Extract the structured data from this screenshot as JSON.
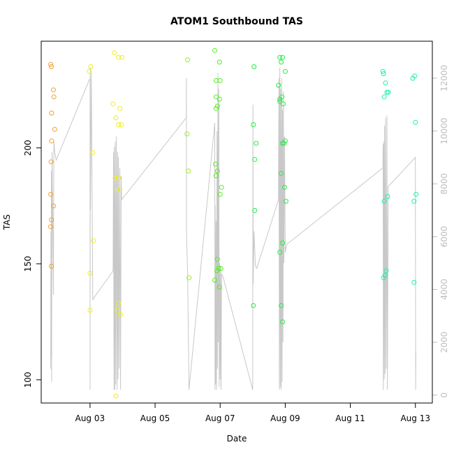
{
  "chart_data": {
    "type": "scatter",
    "title": "ATOM1 Southbound TAS",
    "xlabel": "Date",
    "ylabel": "TAS",
    "xlim": [
      "2023-08-01T12:00",
      "2023-08-13T12:30"
    ],
    "ylim": [
      90,
      246
    ],
    "y2lim": [
      -300,
      13400
    ],
    "x_ticks": [
      "Aug 03",
      "Aug 05",
      "Aug 07",
      "Aug 09",
      "Aug 11",
      "Aug 13"
    ],
    "y_ticks": [
      100,
      150,
      200
    ],
    "y2_ticks": [
      0,
      2000,
      4000,
      6000,
      8000,
      10000,
      12000
    ],
    "grid": false,
    "legend": "none",
    "series": [
      {
        "color": "#f0a030",
        "points": [
          [
            "2023-08-01T19:00",
            236
          ],
          [
            "2023-08-01T19:30",
            235
          ],
          [
            "2023-08-01T21:00",
            225
          ],
          [
            "2023-08-01T21:20",
            222
          ],
          [
            "2023-08-01T19:40",
            215
          ],
          [
            "2023-08-01T22:00",
            208
          ],
          [
            "2023-08-01T19:40",
            203
          ],
          [
            "2023-08-01T19:20",
            194
          ],
          [
            "2023-08-01T19:00",
            180
          ],
          [
            "2023-08-01T21:00",
            175
          ],
          [
            "2023-08-01T19:30",
            169
          ],
          [
            "2023-08-01T19:00",
            166
          ],
          [
            "2023-08-01T19:30",
            149
          ]
        ]
      },
      {
        "color": "#eeee22",
        "points": [
          [
            "2023-08-02T23:30",
            233
          ],
          [
            "2023-08-03T00:30",
            235
          ],
          [
            "2023-08-03T02:00",
            198
          ],
          [
            "2023-08-03T02:30",
            160
          ],
          [
            "2023-08-03T00:00",
            146
          ],
          [
            "2023-08-03T00:00",
            130
          ],
          [
            "2023-08-03T18:00",
            241
          ],
          [
            "2023-08-03T21:00",
            239
          ],
          [
            "2023-08-03T23:30",
            239
          ],
          [
            "2023-08-03T17:00",
            219
          ],
          [
            "2023-08-03T22:00",
            217
          ],
          [
            "2023-08-03T19:00",
            213
          ],
          [
            "2023-08-03T21:00",
            210
          ],
          [
            "2023-08-03T23:00",
            210
          ],
          [
            "2023-08-03T18:30",
            187
          ],
          [
            "2023-08-03T21:00",
            187
          ],
          [
            "2023-08-03T20:00",
            182
          ],
          [
            "2023-08-03T22:00",
            182
          ],
          [
            "2023-08-03T21:00",
            133
          ],
          [
            "2023-08-03T20:00",
            130
          ],
          [
            "2023-08-03T22:30",
            128
          ],
          [
            "2023-08-03T19:00",
            93
          ]
        ]
      },
      {
        "color": "#99ee22",
        "points": [
          [
            "2023-08-06T00:00",
            238
          ],
          [
            "2023-08-05T23:30",
            206
          ],
          [
            "2023-08-06T00:30",
            190
          ],
          [
            "2023-08-06T01:00",
            144
          ]
        ]
      },
      {
        "color": "#55ee22",
        "points": [
          [
            "2023-08-06T20:00",
            242
          ],
          [
            "2023-08-06T23:30",
            237
          ],
          [
            "2023-08-06T21:00",
            229
          ],
          [
            "2023-08-07T00:00",
            229
          ],
          [
            "2023-08-06T21:00",
            222
          ],
          [
            "2023-08-06T23:30",
            221
          ],
          [
            "2023-08-06T21:00",
            217
          ],
          [
            "2023-08-06T22:00",
            218
          ],
          [
            "2023-08-06T20:30",
            193
          ],
          [
            "2023-08-06T22:00",
            190
          ],
          [
            "2023-08-06T21:00",
            188
          ],
          [
            "2023-08-07T01:00",
            183
          ],
          [
            "2023-08-07T00:00",
            180
          ],
          [
            "2023-08-06T22:00",
            152
          ],
          [
            "2023-08-06T23:00",
            148
          ],
          [
            "2023-08-07T00:30",
            148
          ],
          [
            "2023-08-06T21:30",
            147
          ],
          [
            "2023-08-06T20:00",
            143
          ],
          [
            "2023-08-06T23:30",
            140
          ]
        ]
      },
      {
        "color": "#22ee44",
        "points": [
          [
            "2023-08-08T01:00",
            235
          ],
          [
            "2023-08-08T00:30",
            210
          ],
          [
            "2023-08-08T02:30",
            202
          ],
          [
            "2023-08-08T01:30",
            195
          ],
          [
            "2023-08-08T01:30",
            173
          ],
          [
            "2023-08-08T00:30",
            132
          ],
          [
            "2023-08-08T20:00",
            239
          ],
          [
            "2023-08-08T21:00",
            237
          ],
          [
            "2023-08-08T22:00",
            239
          ],
          [
            "2023-08-09T00:00",
            233
          ],
          [
            "2023-08-08T19:00",
            227
          ],
          [
            "2023-08-08T20:00",
            221
          ],
          [
            "2023-08-08T21:30",
            222
          ],
          [
            "2023-08-08T20:00",
            220
          ],
          [
            "2023-08-08T22:30",
            219
          ],
          [
            "2023-08-08T22:00",
            202
          ],
          [
            "2023-08-09T00:00",
            203
          ],
          [
            "2023-08-08T23:00",
            202
          ],
          [
            "2023-08-08T21:00",
            189
          ],
          [
            "2023-08-08T23:30",
            183
          ],
          [
            "2023-08-09T00:30",
            177
          ],
          [
            "2023-08-08T22:00",
            159
          ],
          [
            "2023-08-08T20:00",
            155
          ],
          [
            "2023-08-08T21:00",
            132
          ],
          [
            "2023-08-08T22:00",
            125
          ]
        ]
      },
      {
        "color": "#22eeaa",
        "points": [
          [
            "2023-08-12T00:00",
            233
          ],
          [
            "2023-08-12T00:30",
            232
          ],
          [
            "2023-08-12T02:00",
            228
          ],
          [
            "2023-08-12T03:00",
            224
          ],
          [
            "2023-08-12T04:00",
            224
          ],
          [
            "2023-08-12T01:00",
            222
          ],
          [
            "2023-08-12T01:00",
            177
          ],
          [
            "2023-08-12T03:30",
            179
          ],
          [
            "2023-08-12T02:30",
            147
          ],
          [
            "2023-08-12T01:30",
            145
          ],
          [
            "2023-08-12T00:30",
            144
          ],
          [
            "2023-08-12T22:00",
            230
          ],
          [
            "2023-08-12T23:30",
            231
          ],
          [
            "2023-08-13T00:00",
            211
          ],
          [
            "2023-08-13T00:30",
            180
          ],
          [
            "2023-08-12T23:00",
            177
          ],
          [
            "2023-08-12T23:00",
            142
          ]
        ]
      }
    ],
    "line_series": {
      "axis": "right",
      "color": "#c8c8c8",
      "points": [
        [
          "2023-08-01T19:00",
          1000
        ],
        [
          "2023-08-01T19:10",
          6200
        ],
        [
          "2023-08-01T19:20",
          1400
        ],
        [
          "2023-08-01T19:30",
          8500
        ],
        [
          "2023-08-01T19:40",
          500
        ],
        [
          "2023-08-01T20:00",
          9200
        ],
        [
          "2023-08-01T21:00",
          3800
        ],
        [
          "2023-08-01T21:20",
          9600
        ],
        [
          "2023-08-01T22:00",
          9200
        ],
        [
          "2023-08-01T23:00",
          8900
        ],
        [
          "2023-08-03T00:00",
          12000
        ],
        [
          "2023-08-03T00:05",
          200
        ],
        [
          "2023-08-03T00:10",
          12400
        ],
        [
          "2023-08-03T00:20",
          7000
        ],
        [
          "2023-08-03T01:00",
          12200
        ],
        [
          "2023-08-03T02:00",
          3600
        ],
        [
          "2023-08-03T03:00",
          3700
        ],
        [
          "2023-08-03T17:00",
          4700
        ],
        [
          "2023-08-03T17:20",
          9200
        ],
        [
          "2023-08-03T17:40",
          200
        ],
        [
          "2023-08-03T18:00",
          9400
        ],
        [
          "2023-08-03T18:20",
          200
        ],
        [
          "2023-08-03T18:40",
          9600
        ],
        [
          "2023-08-03T19:00",
          400
        ],
        [
          "2023-08-03T19:30",
          9800
        ],
        [
          "2023-08-03T20:00",
          200
        ],
        [
          "2023-08-03T20:20",
          9200
        ],
        [
          "2023-08-03T20:40",
          600
        ],
        [
          "2023-08-03T21:00",
          9000
        ],
        [
          "2023-08-03T21:30",
          1000
        ],
        [
          "2023-08-03T22:00",
          8600
        ],
        [
          "2023-08-03T22:30",
          200
        ],
        [
          "2023-08-03T23:00",
          8300
        ],
        [
          "2023-08-03T23:20",
          7400
        ],
        [
          "2023-08-05T23:00",
          10500
        ],
        [
          "2023-08-05T23:05",
          12000
        ],
        [
          "2023-08-05T23:10",
          6200
        ],
        [
          "2023-08-06T00:00",
          4600
        ],
        [
          "2023-08-06T01:00",
          200
        ],
        [
          "2023-08-06T20:00",
          10300
        ],
        [
          "2023-08-06T20:10",
          200
        ],
        [
          "2023-08-06T20:20",
          7200
        ],
        [
          "2023-08-06T20:40",
          400
        ],
        [
          "2023-08-06T21:00",
          6600
        ],
        [
          "2023-08-06T21:20",
          200
        ],
        [
          "2023-08-06T21:40",
          10000
        ],
        [
          "2023-08-06T22:00",
          1000
        ],
        [
          "2023-08-06T22:20",
          12200
        ],
        [
          "2023-08-06T22:40",
          2000
        ],
        [
          "2023-08-06T23:00",
          11600
        ],
        [
          "2023-08-06T23:20",
          300
        ],
        [
          "2023-08-06T23:40",
          5000
        ],
        [
          "2023-08-07T00:00",
          600
        ],
        [
          "2023-08-07T00:20",
          4800
        ],
        [
          "2023-08-07T00:40",
          200
        ],
        [
          "2023-08-07T01:00",
          4600
        ],
        [
          "2023-08-07T02:00",
          4500
        ],
        [
          "2023-08-08T00:00",
          200
        ],
        [
          "2023-08-08T00:10",
          11000
        ],
        [
          "2023-08-08T00:20",
          4200
        ],
        [
          "2023-08-08T01:00",
          6200
        ],
        [
          "2023-08-08T02:00",
          4900
        ],
        [
          "2023-08-08T03:00",
          4800
        ],
        [
          "2023-08-08T19:00",
          7400
        ],
        [
          "2023-08-08T19:20",
          12000
        ],
        [
          "2023-08-08T19:40",
          200
        ],
        [
          "2023-08-08T20:00",
          12400
        ],
        [
          "2023-08-08T20:20",
          300
        ],
        [
          "2023-08-08T20:40",
          11600
        ],
        [
          "2023-08-08T21:00",
          200
        ],
        [
          "2023-08-08T21:20",
          12000
        ],
        [
          "2023-08-08T21:40",
          500
        ],
        [
          "2023-08-08T22:00",
          10800
        ],
        [
          "2023-08-08T22:20",
          2000
        ],
        [
          "2023-08-08T22:40",
          11500
        ],
        [
          "2023-08-08T23:00",
          5000
        ],
        [
          "2023-08-08T23:30",
          9800
        ],
        [
          "2023-08-09T00:00",
          5400
        ],
        [
          "2023-08-09T01:00",
          5700
        ],
        [
          "2023-08-12T00:00",
          8600
        ],
        [
          "2023-08-12T00:10",
          9500
        ],
        [
          "2023-08-12T00:20",
          200
        ],
        [
          "2023-08-12T00:40",
          9600
        ],
        [
          "2023-08-12T01:00",
          600
        ],
        [
          "2023-08-12T01:20",
          10200
        ],
        [
          "2023-08-12T01:40",
          800
        ],
        [
          "2023-08-12T02:00",
          10500
        ],
        [
          "2023-08-12T02:30",
          1000
        ],
        [
          "2023-08-12T03:00",
          10600
        ],
        [
          "2023-08-12T03:20",
          200
        ],
        [
          "2023-08-12T04:00",
          7900
        ],
        [
          "2023-08-13T00:00",
          9000
        ],
        [
          "2023-08-13T00:10",
          200
        ],
        [
          "2023-08-13T00:20",
          1600
        ]
      ]
    }
  }
}
